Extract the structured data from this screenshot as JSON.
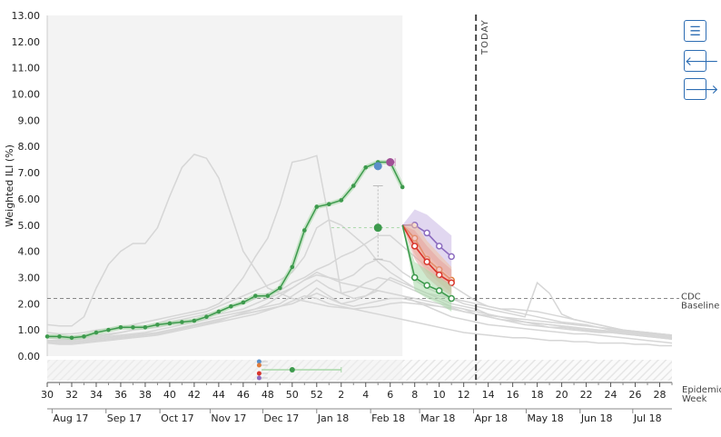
{
  "chart_data": {
    "type": "line",
    "ylabel": "Weighted ILI (%)",
    "ylim": [
      0,
      13
    ],
    "yticks": [
      "0.00",
      "1.00",
      "2.00",
      "3.00",
      "4.00",
      "5.00",
      "6.00",
      "7.00",
      "8.00",
      "9.00",
      "10.00",
      "11.00",
      "12.00",
      "13.00"
    ],
    "x_axis_label": [
      "Epidemic",
      "Week"
    ],
    "week_ticks": [
      "30",
      "32",
      "34",
      "36",
      "38",
      "40",
      "42",
      "44",
      "46",
      "48",
      "50",
      "52",
      "2",
      "4",
      "6",
      "8",
      "10",
      "12",
      "14",
      "16",
      "18",
      "20",
      "22",
      "24",
      "26",
      "28"
    ],
    "month_ticks": [
      "Aug 17",
      "Sep 17",
      "Oct 17",
      "Nov 17",
      "Dec 17",
      "Jan 18",
      "Feb 18",
      "Mar 18",
      "Apr 18",
      "May 18",
      "Jun 18",
      "Jul 18"
    ],
    "today_label": "TODAY",
    "today_index": 35,
    "shaded_until_index": 29,
    "baseline": {
      "value": 2.2,
      "label": [
        "CDC",
        "Baseline"
      ]
    },
    "observed": {
      "color": "#3d9a4d",
      "values": [
        0.75,
        0.75,
        0.7,
        0.75,
        0.9,
        1.0,
        1.1,
        1.1,
        1.1,
        1.2,
        1.25,
        1.3,
        1.35,
        1.5,
        1.7,
        1.9,
        2.05,
        2.3,
        2.3,
        2.6,
        3.4,
        4.8,
        5.7,
        5.8,
        5.95,
        6.5,
        7.2,
        7.4,
        7.4,
        6.45
      ]
    },
    "history_series": [
      [
        1.2,
        1.15,
        1.15,
        1.5,
        2.6,
        3.5,
        4.0,
        4.3,
        4.3,
        4.9,
        6.1,
        7.2,
        7.7,
        7.55,
        6.8,
        5.4,
        4.0,
        3.3,
        2.6,
        2.4,
        2.2,
        2.1,
        2.0,
        1.9,
        1.85,
        1.8,
        1.85,
        1.9,
        2.0,
        2.05,
        2.0,
        1.95,
        1.9,
        1.85,
        1.7,
        1.6,
        1.5,
        1.4,
        1.35,
        1.3,
        1.25,
        1.2,
        1.15,
        1.1,
        1.05,
        1.0,
        0.95,
        0.95,
        0.9,
        0.9,
        0.85,
        0.8
      ],
      [
        0.9,
        0.85,
        0.85,
        0.9,
        1.0,
        1.05,
        1.1,
        1.2,
        1.3,
        1.4,
        1.5,
        1.6,
        1.7,
        1.8,
        2.0,
        2.4,
        3.0,
        3.8,
        4.5,
        5.8,
        7.4,
        7.5,
        7.65,
        5.2,
        2.4,
        2.2,
        2.3,
        2.6,
        3.0,
        2.8,
        2.6,
        2.4,
        2.3,
        2.2,
        2.1,
        2.0,
        1.9,
        1.8,
        1.8,
        1.75,
        1.7,
        1.6,
        1.5,
        1.4,
        1.3,
        1.2,
        1.1,
        1.0,
        0.95,
        0.9,
        0.85,
        0.8
      ],
      [
        0.8,
        0.75,
        0.75,
        0.8,
        0.9,
        1.0,
        1.05,
        1.1,
        1.15,
        1.25,
        1.4,
        1.5,
        1.6,
        1.7,
        1.9,
        2.1,
        2.3,
        2.5,
        2.7,
        2.9,
        3.2,
        3.8,
        4.9,
        5.2,
        5.0,
        4.6,
        4.2,
        3.6,
        3.2,
        2.9,
        2.6,
        2.4,
        2.2,
        2.0,
        1.9,
        1.8,
        1.6,
        1.5,
        1.4,
        1.3,
        1.25,
        1.2,
        1.15,
        1.1,
        1.05,
        1.0,
        0.95,
        0.9,
        0.85,
        0.8,
        0.75,
        0.7
      ],
      [
        0.7,
        0.7,
        0.7,
        0.75,
        0.8,
        0.85,
        0.9,
        1.0,
        1.1,
        1.2,
        1.3,
        1.4,
        1.5,
        1.6,
        1.7,
        1.9,
        2.0,
        2.2,
        2.4,
        2.5,
        2.8,
        3.0,
        3.3,
        3.5,
        3.8,
        4.0,
        4.3,
        4.6,
        4.6,
        4.2,
        3.8,
        3.4,
        3.0,
        2.7,
        2.4,
        2.1,
        1.9,
        1.8,
        1.7,
        1.6,
        1.5,
        1.4,
        1.3,
        1.25,
        1.2,
        1.1,
        1.0,
        0.95,
        0.9,
        0.85,
        0.8,
        0.75
      ],
      [
        0.7,
        0.65,
        0.65,
        0.7,
        0.75,
        0.8,
        0.9,
        1.0,
        1.05,
        1.1,
        1.2,
        1.3,
        1.4,
        1.5,
        1.6,
        1.7,
        1.8,
        2.0,
        2.2,
        2.4,
        2.6,
        2.9,
        3.1,
        3.0,
        2.9,
        3.1,
        3.5,
        3.7,
        3.6,
        3.2,
        2.9,
        2.6,
        2.4,
        2.2,
        2.0,
        1.9,
        1.8,
        1.7,
        1.6,
        1.5,
        2.8,
        2.4,
        1.6,
        1.4,
        1.3,
        1.2,
        1.1,
        1.0,
        0.9,
        0.85,
        0.8,
        0.7
      ],
      [
        0.6,
        0.6,
        0.6,
        0.65,
        0.7,
        0.75,
        0.8,
        0.85,
        0.9,
        1.0,
        1.1,
        1.2,
        1.3,
        1.4,
        1.5,
        1.6,
        1.7,
        1.8,
        1.9,
        2.0,
        2.3,
        2.6,
        2.9,
        2.6,
        2.4,
        2.5,
        2.8,
        3.0,
        2.9,
        2.7,
        2.5,
        2.3,
        2.1,
        1.9,
        1.8,
        1.6,
        1.5,
        1.4,
        1.3,
        1.2,
        1.15,
        1.1,
        1.1,
        1.05,
        1.0,
        0.95,
        0.9,
        0.85,
        0.8,
        0.75,
        0.7,
        0.65
      ],
      [
        0.6,
        0.55,
        0.55,
        0.6,
        0.65,
        0.7,
        0.75,
        0.8,
        0.85,
        0.9,
        1.0,
        1.1,
        1.2,
        1.3,
        1.4,
        1.5,
        1.6,
        1.7,
        1.8,
        1.9,
        2.0,
        2.2,
        2.4,
        2.2,
        2.0,
        2.1,
        2.3,
        2.5,
        2.4,
        2.3,
        2.2,
        2.1,
        2.0,
        1.9,
        1.8,
        1.7,
        1.6,
        1.5,
        1.4,
        1.3,
        1.2,
        1.1,
        1.05,
        1.0,
        0.95,
        0.9,
        0.9,
        0.85,
        0.8,
        0.75,
        0.7,
        0.65
      ],
      [
        0.55,
        0.5,
        0.5,
        0.55,
        0.6,
        0.65,
        0.7,
        0.75,
        0.8,
        0.85,
        0.95,
        1.05,
        1.15,
        1.25,
        1.35,
        1.5,
        1.65,
        1.8,
        2.0,
        2.3,
        2.6,
        2.9,
        3.2,
        3.0,
        2.8,
        2.7,
        2.6,
        2.5,
        2.4,
        2.3,
        2.1,
        1.9,
        1.7,
        1.5,
        1.4,
        1.3,
        1.2,
        1.15,
        1.1,
        1.05,
        1.0,
        0.95,
        0.9,
        0.85,
        0.85,
        0.8,
        0.75,
        0.7,
        0.65,
        0.6,
        0.55,
        0.5
      ],
      [
        0.5,
        0.45,
        0.45,
        0.5,
        0.55,
        0.6,
        0.65,
        0.7,
        0.75,
        0.8,
        0.9,
        1.0,
        1.1,
        1.2,
        1.3,
        1.4,
        1.5,
        1.6,
        1.75,
        1.9,
        2.1,
        2.3,
        2.2,
        2.0,
        1.9,
        1.8,
        1.7,
        1.6,
        1.5,
        1.4,
        1.3,
        1.2,
        1.1,
        1.0,
        0.9,
        0.85,
        0.8,
        0.75,
        0.7,
        0.7,
        0.65,
        0.6,
        0.6,
        0.55,
        0.55,
        0.5,
        0.5,
        0.5,
        0.45,
        0.45,
        0.4,
        0.4
      ],
      [
        0.5,
        0.5,
        0.5,
        0.55,
        0.6,
        0.65,
        0.7,
        0.75,
        0.8,
        0.9,
        1.0,
        1.1,
        1.2,
        1.3,
        1.4,
        1.5,
        1.6,
        1.7,
        1.8,
        1.9,
        2.0,
        2.2,
        2.6,
        2.3,
        2.0,
        1.9,
        2.0,
        2.1,
        2.2,
        2.2,
        2.1,
        2.0,
        1.9,
        1.8,
        1.7,
        1.6,
        1.55,
        1.5,
        1.45,
        1.4,
        1.35,
        1.3,
        1.25,
        1.2,
        1.15,
        1.1,
        1.05,
        1.0,
        0.95,
        0.9,
        0.85,
        0.8
      ]
    ],
    "forecasts": [
      {
        "color": "#8c6bbf",
        "band": "#c9b6e4",
        "values": [
          5.0,
          5.0,
          4.7,
          4.2,
          3.8
        ],
        "lo": [
          5.0,
          4.3,
          3.9,
          3.4,
          3.0
        ],
        "hi": [
          5.0,
          5.6,
          5.4,
          5.0,
          4.6
        ]
      },
      {
        "color": "#e07b39",
        "band": "#f1c09c",
        "values": [
          5.0,
          4.5,
          3.7,
          3.3,
          2.9
        ],
        "lo": [
          5.0,
          3.9,
          3.2,
          2.8,
          2.4
        ],
        "hi": [
          5.0,
          5.1,
          4.4,
          3.9,
          3.4
        ]
      },
      {
        "color": "#d9342b",
        "band": "#e8a39e",
        "values": [
          5.0,
          4.2,
          3.6,
          3.1,
          2.8
        ],
        "lo": [
          5.0,
          3.7,
          3.0,
          2.6,
          2.3
        ],
        "hi": [
          5.0,
          4.8,
          4.2,
          3.7,
          3.3
        ]
      },
      {
        "color": "#3d9a4d",
        "band": "#a8d8a8",
        "values": [
          5.0,
          3.0,
          2.7,
          2.5,
          2.2
        ],
        "lo": [
          5.0,
          2.5,
          2.2,
          2.0,
          1.7
        ],
        "hi": [
          5.0,
          3.6,
          3.3,
          3.0,
          2.7
        ]
      }
    ],
    "peak_markers": [
      {
        "color": "#5b8fc9",
        "week_index": 27,
        "value": 7.25
      },
      {
        "color": "#a05196",
        "week_index": 28,
        "value": 7.4
      },
      {
        "color": "#3d9a4d",
        "week_index": 27,
        "value": 4.9
      }
    ],
    "onset_markers": [
      {
        "color": "#5b8fc9",
        "week_index": 17.3
      },
      {
        "color": "#e07b39",
        "week_index": 17.3
      },
      {
        "color": "#d9342b",
        "week_index": 17.3
      },
      {
        "color": "#8c6bbf",
        "week_index": 17.3
      },
      {
        "color": "#3d9a4d",
        "week_index": 20.0,
        "range": [
          17.5,
          24.0
        ]
      }
    ]
  },
  "controls": {
    "legend_icon": "hamburger-icon",
    "back_icon": "arrow-left-icon",
    "forward_icon": "arrow-right-icon"
  }
}
